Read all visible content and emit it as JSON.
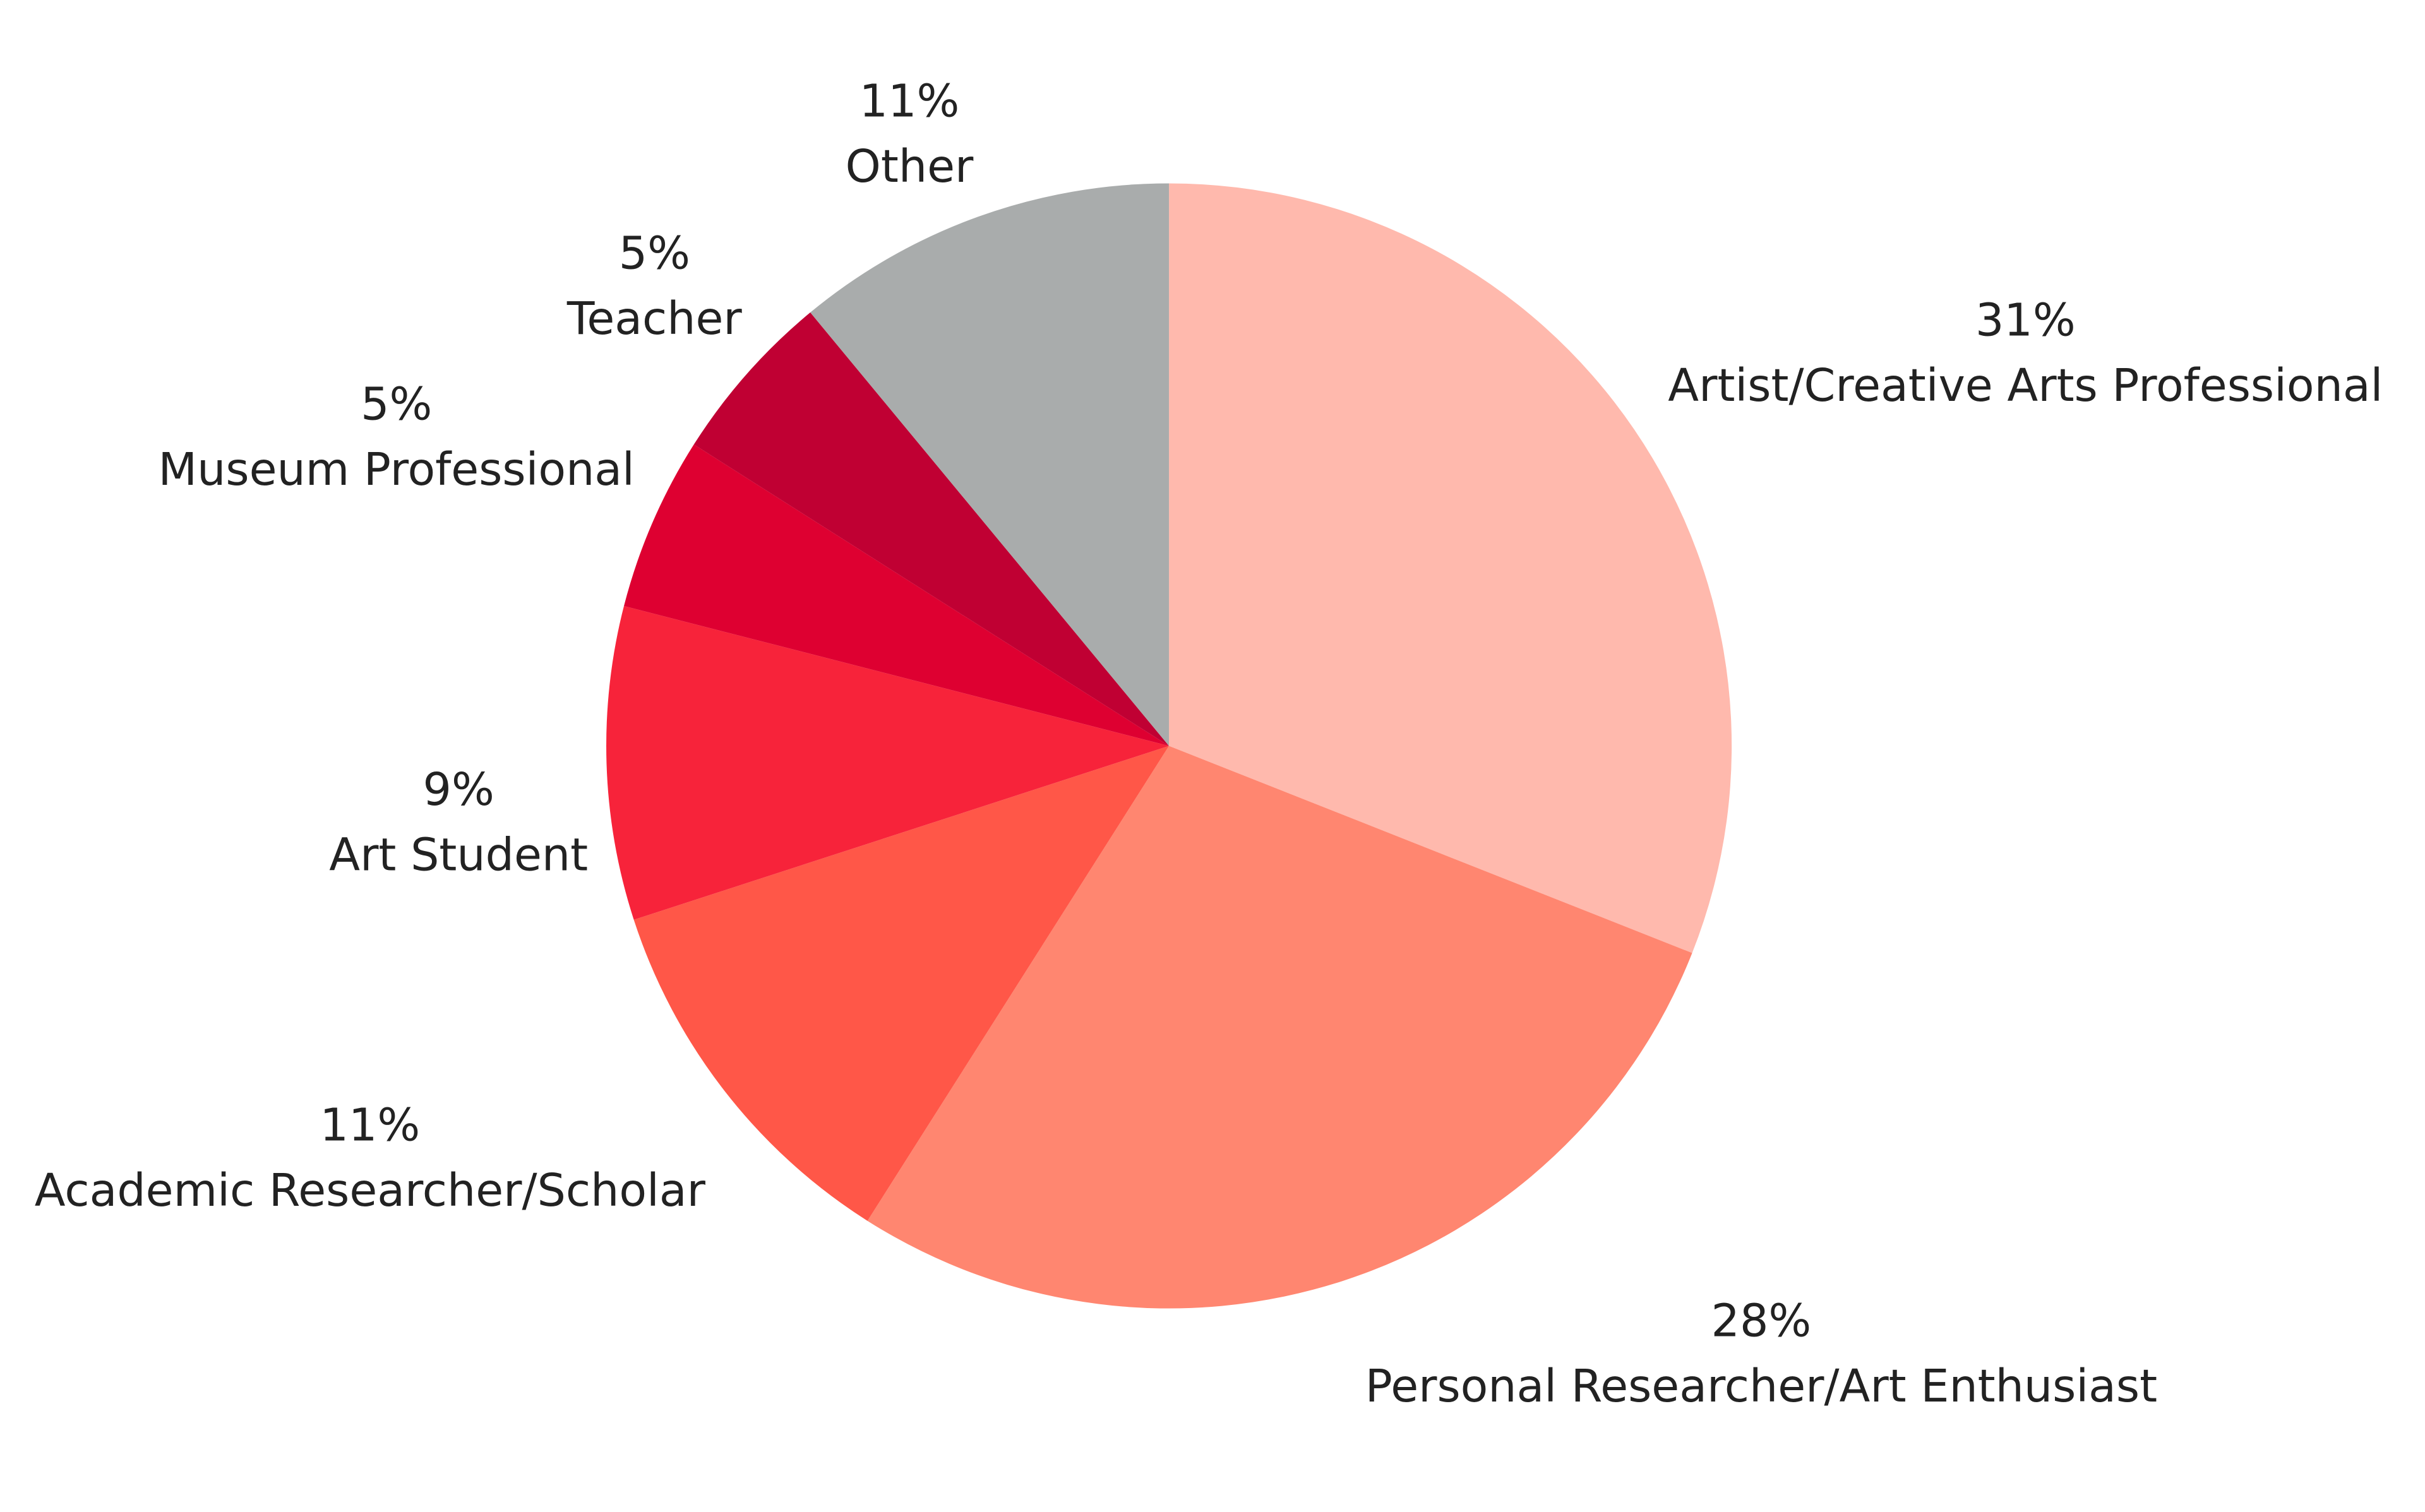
{
  "chart_data": {
    "type": "pie",
    "categories": [
      "Artist/Creative Arts Professional",
      "Personal Researcher/Art Enthusiast",
      "Academic Researcher/Scholar",
      "Art Student",
      "Museum Professional",
      "Teacher",
      "Other"
    ],
    "values": [
      31,
      28,
      11,
      9,
      5,
      5,
      11
    ],
    "value_labels": [
      "31%",
      "28%",
      "11%",
      "9%",
      "5%",
      "5%",
      "11%"
    ],
    "colors": [
      "#ffb9ad",
      "#ff8670",
      "#ff5748",
      "#f7233a",
      "#de0031",
      "#c00033",
      "#a9acac"
    ]
  }
}
